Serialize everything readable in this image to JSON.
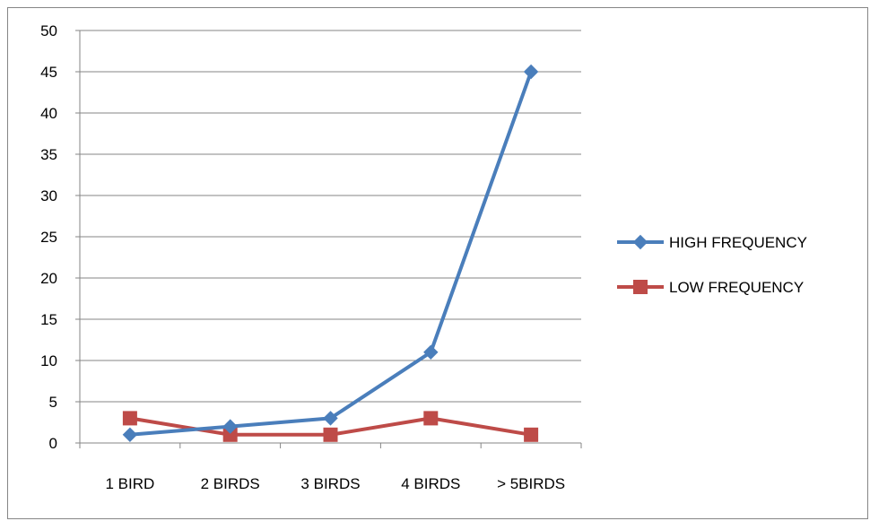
{
  "chart_data": {
    "type": "line",
    "title": "",
    "xlabel": "",
    "ylabel": "",
    "categories": [
      "1 BIRD",
      "2 BIRDS",
      "3 BIRDS",
      "4 BIRDS",
      "> 5BIRDS"
    ],
    "y_ticks": [
      "0",
      "5",
      "10",
      "15",
      "20",
      "25",
      "30",
      "35",
      "40",
      "45",
      "50"
    ],
    "ylim": [
      0,
      50
    ],
    "grid": true,
    "legend_position": "right",
    "series": [
      {
        "name": "HIGH FREQUENCY",
        "color": "#4a7ebb",
        "marker": "diamond",
        "values": [
          1,
          2,
          3,
          11,
          45
        ]
      },
      {
        "name": "LOW FREQUENCY",
        "color": "#be4b48",
        "marker": "square",
        "values": [
          3,
          1,
          1,
          3,
          1
        ]
      }
    ]
  }
}
